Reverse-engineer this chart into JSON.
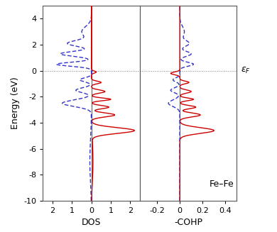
{
  "energy_range": [
    -10,
    5
  ],
  "ylim": [
    -10,
    5
  ],
  "dos_xlim": [
    -2.5,
    2.5
  ],
  "cohp_xlim": [
    -0.35,
    0.5
  ],
  "dos_xticks": [
    -2,
    -1,
    0,
    1,
    2
  ],
  "dos_xticklabels": [
    "2",
    "1",
    "0",
    "1",
    "2"
  ],
  "cohp_xticks": [
    -0.2,
    0,
    0.2,
    0.4
  ],
  "cohp_xticklabels": [
    "-0.2",
    "0",
    "0.2",
    "0.4"
  ],
  "yticks": [
    -10,
    -8,
    -6,
    -4,
    -2,
    0,
    2,
    4
  ],
  "dos_xlabel": "DOS",
  "cohp_xlabel": "-COHP",
  "ylabel": "Energy (eV)",
  "annotation": "Fe–Fe",
  "red_color": "#cc0000",
  "blue_color": "#3333cc",
  "line_width": 1.0,
  "background_color": "#ffffff"
}
